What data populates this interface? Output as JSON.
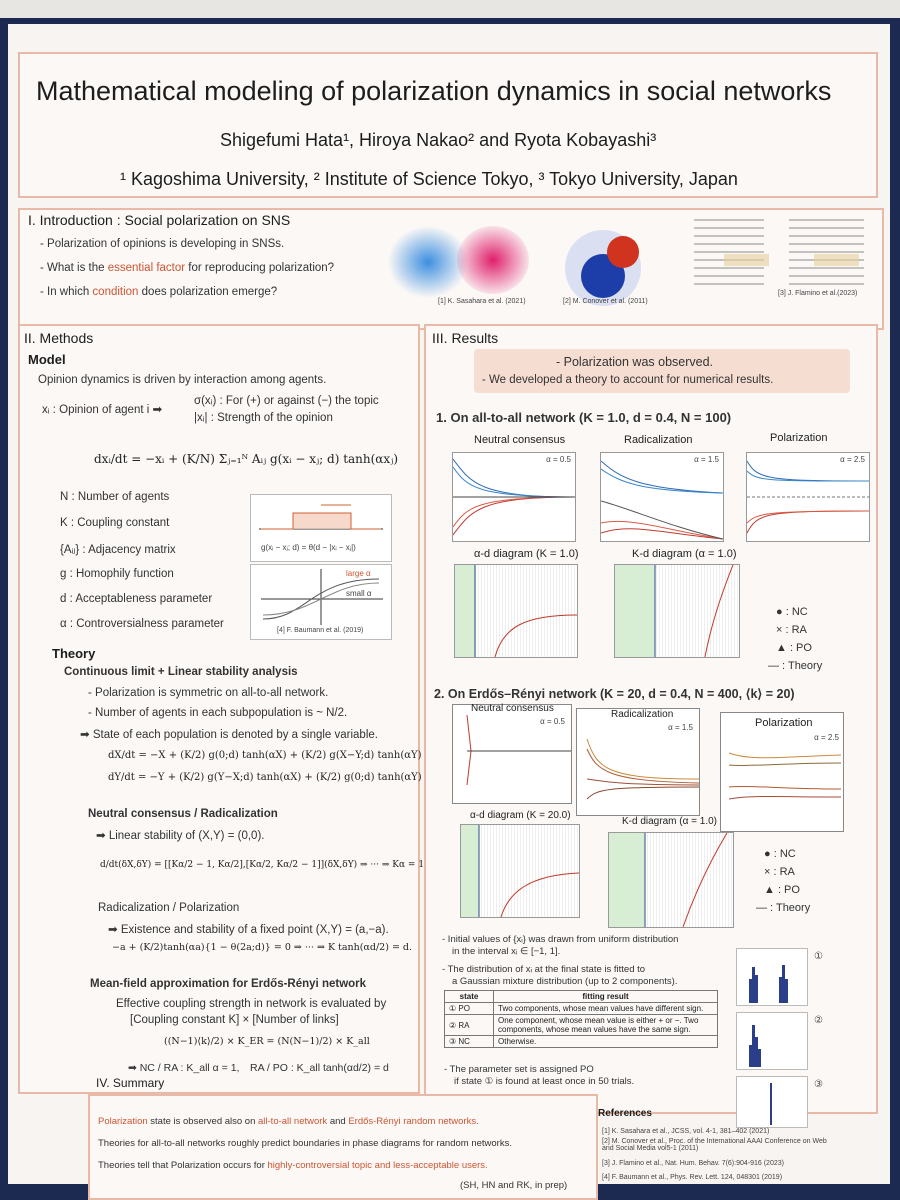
{
  "header": {
    "title": "Mathematical modeling of polarization dynamics in social networks",
    "authors": "Shigefumi Hata¹, Hiroya Nakao² and Ryota Kobayashi³",
    "affiliations": "¹ Kagoshima University, ² Institute of Science Tokyo, ³ Tokyo University, Japan"
  },
  "intro": {
    "heading": "I. Introduction : Social polarization on SNS",
    "bullet1": "- Polarization of opinions is developing in SNSs.",
    "bullet2_pre": "- What is the ",
    "bullet2_hl": "essential factor",
    "bullet2_post": " for reproducing polarization?",
    "bullet3_pre": "- In which ",
    "bullet3_hl": "condition",
    "bullet3_post": " does polarization emerge?",
    "cite1": "[1] K. Sasahara et al. (2021)",
    "cite2": "[2] M. Conover et al. (2011)",
    "cite3": "[3] J. Flamino et al.(2023)"
  },
  "methods": {
    "heading": "II. Methods",
    "model_heading": "Model",
    "line1": "Opinion dynamics is driven by interaction among agents.",
    "xi_label": "xᵢ : Opinion of agent i ➡",
    "sigma": "σ(xᵢ) : For (+) or against (−) the topic",
    "absx": "|xᵢ| : Strength of the opinion",
    "eq_main": "dxᵢ/dt = −xᵢ + (K/N) Σⱼ₌₁ᴺ Aᵢⱼ g(xᵢ − xⱼ; d) tanh(αxⱼ)",
    "defs": [
      "N : Number of agents",
      "K : Coupling constant",
      "{Aᵢⱼ} : Adjacency matrix",
      "g : Homophily function",
      "d : Acceptableness parameter",
      "α : Controversialness parameter"
    ],
    "g_formula": "g(xᵢ − xⱼ; d) = θ(d − |xᵢ − xⱼ|)",
    "large_alpha": "large α",
    "small_alpha": "small α",
    "cite4": "[4] F. Baumann et al. (2019)",
    "theory_heading": "Theory",
    "theory_sub": "Continuous limit + Linear stability analysis",
    "t1": "- Polarization is symmetric on all-to-all network.",
    "t2": "- Number of agents in each subpopulation is ~ N/2.",
    "t3": "➡ State of each population is denoted by a single variable.",
    "eqX": "dX/dt = −X + (K/2) g(0;d) tanh(αX) + (K/2) g(X−Y;d) tanh(αY)",
    "eqY": "dY/dt = −Y + (K/2) g(Y−X;d) tanh(αX) + (K/2) g(0;d) tanh(αY)",
    "nc_heading": "Neutral consensus / Radicalization",
    "nc_line": "➡ Linear stability of (X,Y) = (0,0).",
    "nc_eq": "d/dt(δX,δY) = [[Kα/2 − 1, Kα/2],[Kα/2, Kα/2 − 1]](δX,δY) ⇒ ··· ⇒ Kα = 1",
    "rp_heading": "Radicalization / Polarization",
    "rp_line": "➡ Existence and stability of a fixed point (X,Y) = (a,−a).",
    "rp_eq": "−a + (K/2)tanh(αa){1 − θ(2a;d)} = 0 ⇒ ··· ⇒ K tanh(αd/2) = d.",
    "mf_heading": "Mean-field approximation for Erdős-Rényi network",
    "mf1": "Effective coupling strength in network is evaluated by",
    "mf2": "[Coupling constant K] × [Number of links]",
    "mf_eq": "((N−1)⟨k⟩/2) × K_ER = (N(N−1)/2) × K_all",
    "mf_res1": "➡ NC / RA : K_all α = 1,",
    "mf_res2": "RA / PO : K_all tanh(αd/2) = d"
  },
  "results": {
    "heading": "III. Results",
    "callout1": "- Polarization was observed.",
    "callout2": "- We developed a theory to account for numerical results.",
    "sec1": "1. On all-to-all network (K = 1.0, d = 0.4, N = 100)",
    "sec1_plots": [
      {
        "title": "Neutral consensus",
        "alpha": "α = 0.5"
      },
      {
        "title": "Radicalization",
        "alpha": "α = 1.5"
      },
      {
        "title": "Polarization",
        "alpha": "α = 2.5"
      }
    ],
    "diag1": "α-d diagram (K = 1.0)",
    "diag2": "K-d diagram (α = 1.0)",
    "legend": [
      "● : NC",
      "× : RA",
      "▲ : PO",
      "— : Theory"
    ],
    "sec2": "2. On Erdős–Rényi network (K = 20, d = 0.4, N = 400, ⟨k⟩ = 20)",
    "sec2_plots": [
      {
        "title": "Neutral consensus",
        "alpha": "α = 0.5"
      },
      {
        "title": "Radicalization",
        "alpha": "α = 1.5"
      },
      {
        "title": "Polarization",
        "alpha": "α = 2.5"
      }
    ],
    "diag3": "α-d diagram (K = 20.0)",
    "diag4": "K-d diagram (α = 1.0)",
    "note1": "- Initial values of {xᵢ} was drawn from uniform distribution",
    "note1b": "in the interval xᵢ ∈ [−1, 1].",
    "note2": "- The distribution of xᵢ at the final state is fitted to",
    "note2b": "a Gaussian mixture distribution (up to 2 components).",
    "table_head": [
      "state",
      "fitting result"
    ],
    "table_rows": [
      [
        "① PO",
        "Two components, whose mean values have different sign."
      ],
      [
        "② RA",
        "One component, whose mean value is either + or −. Two components, whose mean values have the same sign."
      ],
      [
        "③ NC",
        "Otherwise."
      ]
    ],
    "note3": "- The parameter set is assigned PO",
    "note3b": "if state ① is found at least once in 50 trials.",
    "hist_labels": [
      "①",
      "②",
      "③"
    ]
  },
  "summary": {
    "heading": "IV. Summary",
    "s1_a": "Polarization",
    "s1_b": " state is observed also on ",
    "s1_c": "all-to-all network",
    "s1_d": " and ",
    "s1_e": "Erdős-Rényi random networks.",
    "s2": "Theories for all-to-all networks roughly predict boundaries in phase diagrams for random networks.",
    "s3_a": "Theories tell that Polarization occurs for ",
    "s3_b": "highly-controversial topic and less-acceptable users.",
    "sig": "(SH, HN and RK, in prep)"
  },
  "references": {
    "heading": "References",
    "items": [
      "[1] K. Sasahara et al., JCSS, vol. 4-1, 381–402 (2021)",
      "[2] M. Conover et al., Proc. of the International AAAI Conference on Web and Social Media vol5-1 (2011)",
      "[3] J. Flamino et al., Nat. Hum. Behav. 7(6):904-916 (2023)",
      "[4] F. Baumann et al., Phys. Rev. Lett. 124, 048301 (2019)"
    ]
  }
}
